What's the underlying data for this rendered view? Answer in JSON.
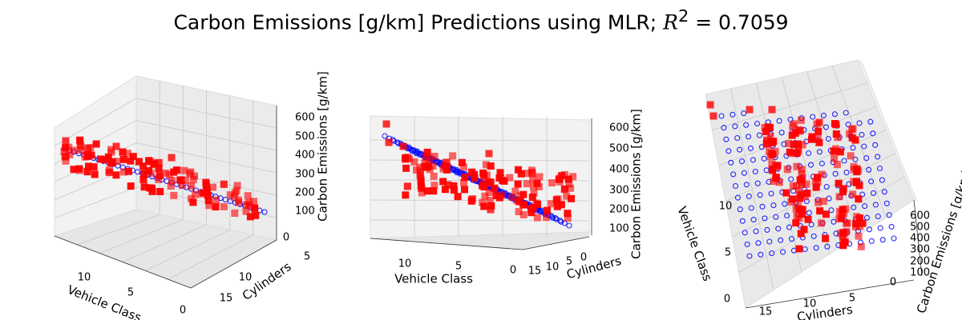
{
  "title": {
    "prefix": "Carbon Emissions [g/km] Predictions using MLR; ",
    "r2_symbol": "R",
    "r2_sup": "2",
    "r2_value": " = 0.7059"
  },
  "colors": {
    "surface": "#0000ff",
    "data": "#ff0000",
    "pane": "#f2f2f2",
    "grid": "#c8c8c8"
  },
  "chart_data": [
    {
      "type": "scatter",
      "view": "angled",
      "xlabel": "Vehicle Class",
      "ylabel": "Cylinders",
      "zlabel": "Carbon Emissions [g/km]",
      "xticks": [
        "10",
        "5",
        "0"
      ],
      "yticks": [
        "0",
        "5",
        "10",
        "15"
      ],
      "zticks": [
        "100",
        "200",
        "300",
        "400",
        "500",
        "600"
      ],
      "xlim": [
        0,
        14
      ],
      "ylim": [
        0,
        16
      ],
      "zlim": [
        50,
        650
      ],
      "series": [
        {
          "kind": "predicted-surface",
          "marker": "hollow-circle",
          "color": "#0000ff"
        },
        {
          "kind": "observed",
          "marker": "square",
          "color": "#ff0000"
        }
      ]
    },
    {
      "type": "scatter",
      "view": "front-low",
      "xlabel": "Vehicle Class",
      "ylabel": "Cylinders",
      "zlabel": "Carbon Emissions [g/km]",
      "xticks": [
        "10",
        "5",
        "0"
      ],
      "yticks": [
        "0",
        "5",
        "10",
        "15"
      ],
      "zticks": [
        "100",
        "200",
        "300",
        "400",
        "500",
        "600"
      ],
      "xlim": [
        0,
        14
      ],
      "ylim": [
        0,
        16
      ],
      "zlim": [
        50,
        650
      ],
      "series": [
        {
          "kind": "predicted-surface",
          "marker": "hollow-circle",
          "color": "#0000ff"
        },
        {
          "kind": "observed",
          "marker": "square",
          "color": "#ff0000"
        }
      ]
    },
    {
      "type": "scatter",
      "view": "top-down",
      "xlabel": "Vehicle Class",
      "ylabel": "Cylinders",
      "zlabel": "Carbon Emissions [g/km]",
      "xticks": [
        "10",
        "5",
        "0"
      ],
      "yticks": [
        "15",
        "10",
        "5",
        "0"
      ],
      "zticks": [
        "100",
        "200",
        "300",
        "400",
        "500",
        "600"
      ],
      "xlim": [
        0,
        14
      ],
      "ylim": [
        0,
        16
      ],
      "zlim": [
        50,
        650
      ],
      "series": [
        {
          "kind": "predicted-surface",
          "marker": "hollow-circle",
          "color": "#0000ff"
        },
        {
          "kind": "observed",
          "marker": "square",
          "color": "#ff0000"
        }
      ]
    }
  ]
}
